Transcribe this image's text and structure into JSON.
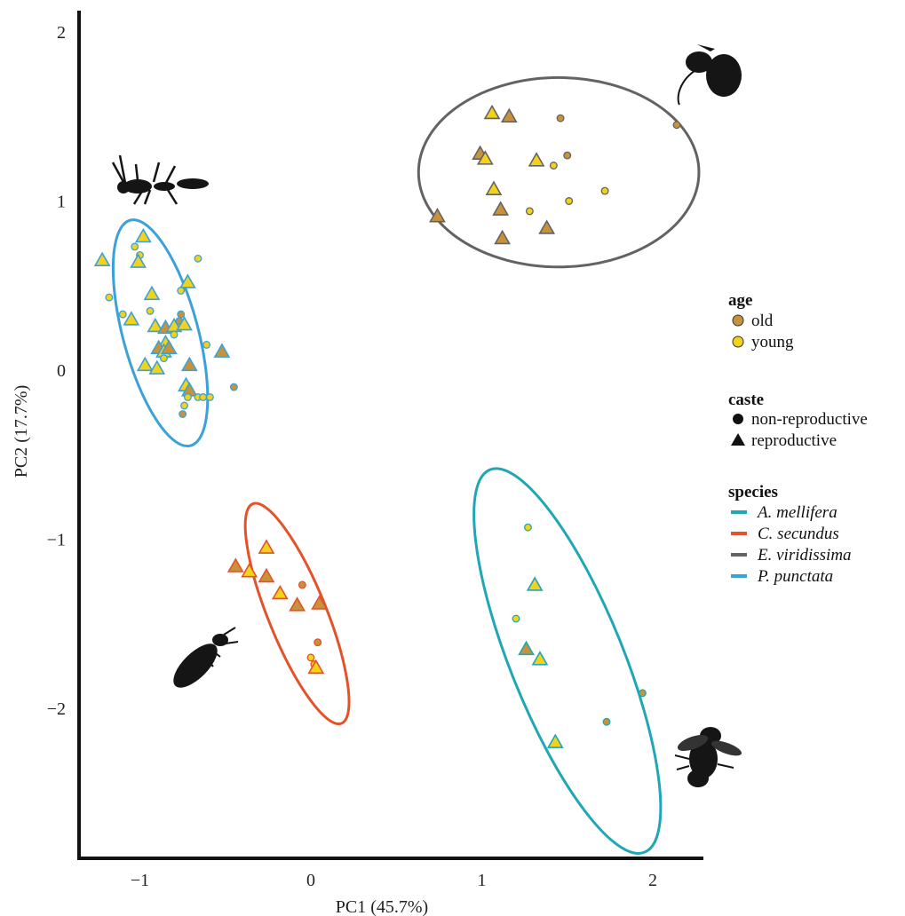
{
  "chart_data": {
    "type": "scatter",
    "xlabel": "PC1 (45.7%)",
    "ylabel": "PC2 (17.7%)",
    "xlim": [
      -1.4,
      2.3
    ],
    "ylim": [
      -2.95,
      2.1
    ],
    "xticks": [
      -1,
      0,
      1,
      2
    ],
    "yticks": [
      2,
      1,
      0,
      -1,
      -2
    ],
    "grid": false,
    "legend_position": "right",
    "age": [
      {
        "key": "old",
        "label": "old",
        "color": "#c8923a"
      },
      {
        "key": "young",
        "label": "young",
        "color": "#f2d21a"
      }
    ],
    "caste": [
      {
        "key": "non-reproductive",
        "label": "non-reproductive",
        "marker": "circle"
      },
      {
        "key": "reproductive",
        "label": "reproductive",
        "marker": "triangle"
      }
    ],
    "species": [
      {
        "key": "A. mellifera",
        "label": "A. mellifera",
        "color": "#1fa7b5"
      },
      {
        "key": "C. secundus",
        "label": "C. secundus",
        "color": "#e4522a"
      },
      {
        "key": "E. viridissima",
        "label": "E. viridissima",
        "color": "#636363"
      },
      {
        "key": "P. punctata",
        "label": "P. punctata",
        "color": "#3aa2d8"
      }
    ],
    "legend_headings": {
      "age": "age",
      "caste": "caste",
      "species": "species"
    },
    "ellipses": [
      {
        "species": "E. viridissima",
        "cx": 1.45,
        "cy": 1.17,
        "rx": 0.82,
        "ry": 0.56,
        "angle": 0
      },
      {
        "species": "P. punctata",
        "cx": -0.88,
        "cy": 0.22,
        "rx": 0.22,
        "ry": 0.69,
        "angle": -15
      },
      {
        "species": "C. secundus",
        "cx": -0.08,
        "cy": -1.44,
        "rx": 0.17,
        "ry": 0.7,
        "angle": -22
      },
      {
        "species": "A. mellifera",
        "cx": 1.5,
        "cy": -1.72,
        "rx": 0.33,
        "ry": 1.22,
        "angle": -22
      }
    ],
    "points": [
      {
        "x": 1.06,
        "y": 1.52,
        "age": "young",
        "caste": "reproductive",
        "species": "E. viridissima"
      },
      {
        "x": 1.16,
        "y": 1.5,
        "age": "old",
        "caste": "reproductive",
        "species": "E. viridissima"
      },
      {
        "x": 1.46,
        "y": 1.49,
        "age": "old",
        "caste": "non-reproductive",
        "species": "E. viridissima"
      },
      {
        "x": 2.14,
        "y": 1.45,
        "age": "old",
        "caste": "non-reproductive",
        "species": "E. viridissima"
      },
      {
        "x": 0.99,
        "y": 1.28,
        "age": "old",
        "caste": "reproductive",
        "species": "E. viridissima"
      },
      {
        "x": 1.02,
        "y": 1.25,
        "age": "young",
        "caste": "reproductive",
        "species": "E. viridissima"
      },
      {
        "x": 1.32,
        "y": 1.24,
        "age": "young",
        "caste": "reproductive",
        "species": "E. viridissima"
      },
      {
        "x": 1.5,
        "y": 1.27,
        "age": "old",
        "caste": "non-reproductive",
        "species": "E. viridissima"
      },
      {
        "x": 1.42,
        "y": 1.21,
        "age": "young",
        "caste": "non-reproductive",
        "species": "E. viridissima"
      },
      {
        "x": 1.07,
        "y": 1.07,
        "age": "young",
        "caste": "reproductive",
        "species": "E. viridissima"
      },
      {
        "x": 1.72,
        "y": 1.06,
        "age": "young",
        "caste": "non-reproductive",
        "species": "E. viridissima"
      },
      {
        "x": 1.51,
        "y": 1.0,
        "age": "young",
        "caste": "non-reproductive",
        "species": "E. viridissima"
      },
      {
        "x": 1.11,
        "y": 0.95,
        "age": "old",
        "caste": "reproductive",
        "species": "E. viridissima"
      },
      {
        "x": 1.28,
        "y": 0.94,
        "age": "young",
        "caste": "non-reproductive",
        "species": "E. viridissima"
      },
      {
        "x": 0.74,
        "y": 0.91,
        "age": "old",
        "caste": "reproductive",
        "species": "E. viridissima"
      },
      {
        "x": 1.38,
        "y": 0.84,
        "age": "old",
        "caste": "reproductive",
        "species": "E. viridissima"
      },
      {
        "x": 1.12,
        "y": 0.78,
        "age": "old",
        "caste": "reproductive",
        "species": "E. viridissima"
      },
      {
        "x": -0.98,
        "y": 0.79,
        "age": "young",
        "caste": "reproductive",
        "species": "P. punctata"
      },
      {
        "x": -1.03,
        "y": 0.73,
        "age": "young",
        "caste": "non-reproductive",
        "species": "P. punctata"
      },
      {
        "x": -1.0,
        "y": 0.68,
        "age": "young",
        "caste": "non-reproductive",
        "species": "P. punctata"
      },
      {
        "x": -0.66,
        "y": 0.66,
        "age": "young",
        "caste": "non-reproductive",
        "species": "P. punctata"
      },
      {
        "x": -1.22,
        "y": 0.65,
        "age": "young",
        "caste": "reproductive",
        "species": "P. punctata"
      },
      {
        "x": -1.01,
        "y": 0.64,
        "age": "young",
        "caste": "reproductive",
        "species": "P. punctata"
      },
      {
        "x": -0.72,
        "y": 0.52,
        "age": "young",
        "caste": "reproductive",
        "species": "P. punctata"
      },
      {
        "x": -0.93,
        "y": 0.45,
        "age": "young",
        "caste": "reproductive",
        "species": "P. punctata"
      },
      {
        "x": -0.76,
        "y": 0.47,
        "age": "young",
        "caste": "non-reproductive",
        "species": "P. punctata"
      },
      {
        "x": -1.18,
        "y": 0.43,
        "age": "young",
        "caste": "non-reproductive",
        "species": "P. punctata"
      },
      {
        "x": -0.94,
        "y": 0.35,
        "age": "young",
        "caste": "non-reproductive",
        "species": "P. punctata"
      },
      {
        "x": -1.1,
        "y": 0.33,
        "age": "young",
        "caste": "non-reproductive",
        "species": "P. punctata"
      },
      {
        "x": -1.05,
        "y": 0.3,
        "age": "young",
        "caste": "reproductive",
        "species": "P. punctata"
      },
      {
        "x": -0.76,
        "y": 0.33,
        "age": "old",
        "caste": "non-reproductive",
        "species": "P. punctata"
      },
      {
        "x": -0.77,
        "y": 0.29,
        "age": "old",
        "caste": "non-reproductive",
        "species": "P. punctata"
      },
      {
        "x": -0.91,
        "y": 0.26,
        "age": "young",
        "caste": "reproductive",
        "species": "P. punctata"
      },
      {
        "x": -0.85,
        "y": 0.25,
        "age": "old",
        "caste": "reproductive",
        "species": "P. punctata"
      },
      {
        "x": -0.8,
        "y": 0.26,
        "age": "young",
        "caste": "reproductive",
        "species": "P. punctata"
      },
      {
        "x": -0.74,
        "y": 0.27,
        "age": "young",
        "caste": "reproductive",
        "species": "P. punctata"
      },
      {
        "x": -0.8,
        "y": 0.21,
        "age": "young",
        "caste": "non-reproductive",
        "species": "P. punctata"
      },
      {
        "x": -0.85,
        "y": 0.16,
        "age": "young",
        "caste": "reproductive",
        "species": "P. punctata"
      },
      {
        "x": -0.89,
        "y": 0.13,
        "age": "old",
        "caste": "reproductive",
        "species": "P. punctata"
      },
      {
        "x": -0.86,
        "y": 0.11,
        "age": "young",
        "caste": "reproductive",
        "species": "P. punctata"
      },
      {
        "x": -0.83,
        "y": 0.13,
        "age": "old",
        "caste": "reproductive",
        "species": "P. punctata"
      },
      {
        "x": -0.61,
        "y": 0.15,
        "age": "young",
        "caste": "non-reproductive",
        "species": "P. punctata"
      },
      {
        "x": -0.52,
        "y": 0.11,
        "age": "old",
        "caste": "reproductive",
        "species": "P. punctata"
      },
      {
        "x": -0.86,
        "y": 0.07,
        "age": "young",
        "caste": "non-reproductive",
        "species": "P. punctata"
      },
      {
        "x": -0.97,
        "y": 0.03,
        "age": "young",
        "caste": "reproductive",
        "species": "P. punctata"
      },
      {
        "x": -0.9,
        "y": 0.01,
        "age": "young",
        "caste": "reproductive",
        "species": "P. punctata"
      },
      {
        "x": -0.71,
        "y": 0.03,
        "age": "old",
        "caste": "reproductive",
        "species": "P. punctata"
      },
      {
        "x": -0.73,
        "y": -0.09,
        "age": "young",
        "caste": "reproductive",
        "species": "P. punctata"
      },
      {
        "x": -0.71,
        "y": -0.12,
        "age": "old",
        "caste": "reproductive",
        "species": "P. punctata"
      },
      {
        "x": -0.45,
        "y": -0.1,
        "age": "old",
        "caste": "non-reproductive",
        "species": "P. punctata"
      },
      {
        "x": -0.72,
        "y": -0.16,
        "age": "young",
        "caste": "non-reproductive",
        "species": "P. punctata"
      },
      {
        "x": -0.66,
        "y": -0.16,
        "age": "young",
        "caste": "non-reproductive",
        "species": "P. punctata"
      },
      {
        "x": -0.63,
        "y": -0.16,
        "age": "young",
        "caste": "non-reproductive",
        "species": "P. punctata"
      },
      {
        "x": -0.59,
        "y": -0.16,
        "age": "young",
        "caste": "non-reproductive",
        "species": "P. punctata"
      },
      {
        "x": -0.74,
        "y": -0.21,
        "age": "young",
        "caste": "non-reproductive",
        "species": "P. punctata"
      },
      {
        "x": -0.75,
        "y": -0.26,
        "age": "old",
        "caste": "non-reproductive",
        "species": "P. punctata"
      },
      {
        "x": -0.26,
        "y": -1.05,
        "age": "young",
        "caste": "reproductive",
        "species": "C. secundus"
      },
      {
        "x": -0.44,
        "y": -1.16,
        "age": "old",
        "caste": "reproductive",
        "species": "C. secundus"
      },
      {
        "x": -0.36,
        "y": -1.19,
        "age": "young",
        "caste": "reproductive",
        "species": "C. secundus"
      },
      {
        "x": -0.26,
        "y": -1.22,
        "age": "old",
        "caste": "reproductive",
        "species": "C. secundus"
      },
      {
        "x": -0.05,
        "y": -1.27,
        "age": "old",
        "caste": "non-reproductive",
        "species": "C. secundus"
      },
      {
        "x": -0.18,
        "y": -1.32,
        "age": "young",
        "caste": "reproductive",
        "species": "C. secundus"
      },
      {
        "x": -0.08,
        "y": -1.39,
        "age": "old",
        "caste": "reproductive",
        "species": "C. secundus"
      },
      {
        "x": 0.05,
        "y": -1.38,
        "age": "old",
        "caste": "reproductive",
        "species": "C. secundus"
      },
      {
        "x": 0.04,
        "y": -1.61,
        "age": "old",
        "caste": "non-reproductive",
        "species": "C. secundus"
      },
      {
        "x": 0.0,
        "y": -1.7,
        "age": "young",
        "caste": "non-reproductive",
        "species": "C. secundus"
      },
      {
        "x": 0.02,
        "y": -1.74,
        "age": "young",
        "caste": "non-reproductive",
        "species": "C. secundus"
      },
      {
        "x": 0.03,
        "y": -1.76,
        "age": "young",
        "caste": "reproductive",
        "species": "C. secundus"
      },
      {
        "x": 1.27,
        "y": -0.93,
        "age": "young",
        "caste": "non-reproductive",
        "species": "A. mellifera"
      },
      {
        "x": 1.31,
        "y": -1.27,
        "age": "young",
        "caste": "reproductive",
        "species": "A. mellifera"
      },
      {
        "x": 1.2,
        "y": -1.47,
        "age": "young",
        "caste": "non-reproductive",
        "species": "A. mellifera"
      },
      {
        "x": 1.26,
        "y": -1.65,
        "age": "old",
        "caste": "reproductive",
        "species": "A. mellifera"
      },
      {
        "x": 1.34,
        "y": -1.71,
        "age": "young",
        "caste": "reproductive",
        "species": "A. mellifera"
      },
      {
        "x": 1.94,
        "y": -1.91,
        "age": "old",
        "caste": "non-reproductive",
        "species": "A. mellifera"
      },
      {
        "x": 1.73,
        "y": -2.08,
        "age": "old",
        "caste": "non-reproductive",
        "species": "A. mellifera"
      },
      {
        "x": 1.43,
        "y": -2.2,
        "age": "young",
        "caste": "reproductive",
        "species": "A. mellifera"
      }
    ]
  }
}
